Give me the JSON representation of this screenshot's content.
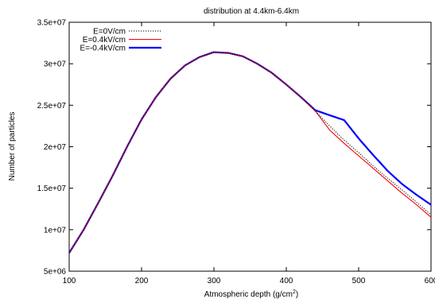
{
  "chart_data": {
    "type": "line",
    "title": "distribution at 4.4km-6.4km",
    "xlabel_main": "Atmospheric depth (g/cm",
    "xlabel_sup": "2",
    "xlabel_close": ")",
    "ylabel": "Number of particles",
    "xlim": [
      100,
      600
    ],
    "ylim": [
      5000000,
      35000000
    ],
    "xticks": [
      100,
      200,
      300,
      400,
      500,
      600
    ],
    "yticks": [
      5000000,
      10000000,
      15000000,
      20000000,
      25000000,
      30000000,
      35000000
    ],
    "ytick_labels": [
      "5e+06",
      "1e+07",
      "1.5e+07",
      "2e+07",
      "2.5e+07",
      "3e+07",
      "3.5e+07"
    ],
    "grid": false,
    "legend_position": "top-left",
    "series": [
      {
        "name": "E=0V/cm",
        "color": "#000000",
        "style": "dotted",
        "x": [
          100,
          120,
          140,
          160,
          180,
          200,
          220,
          240,
          260,
          280,
          300,
          320,
          340,
          360,
          380,
          400,
          420,
          440,
          460,
          480,
          500,
          520,
          540,
          560,
          580,
          600
        ],
        "y": [
          7200000,
          10000000,
          13200000,
          16500000,
          20000000,
          23300000,
          26000000,
          28200000,
          29800000,
          30800000,
          31400000,
          31300000,
          30900000,
          30000000,
          28900000,
          27500000,
          26000000,
          24300000,
          22500000,
          20800000,
          19300000,
          17700000,
          16200000,
          14800000,
          13300000,
          11800000
        ]
      },
      {
        "name": "E=0.4kV/cm",
        "color": "#ff0000",
        "style": "solid",
        "x": [
          100,
          120,
          140,
          160,
          180,
          200,
          220,
          240,
          260,
          280,
          300,
          320,
          340,
          360,
          380,
          400,
          420,
          440,
          460,
          480,
          500,
          520,
          540,
          560,
          580,
          600
        ],
        "y": [
          7200000,
          10000000,
          13200000,
          16500000,
          20000000,
          23300000,
          26000000,
          28200000,
          29800000,
          30800000,
          31400000,
          31300000,
          30900000,
          30000000,
          28900000,
          27500000,
          26000000,
          24300000,
          22000000,
          20400000,
          18900000,
          17400000,
          15900000,
          14400000,
          13000000,
          11500000
        ]
      },
      {
        "name": "E=-0.4kV/cm",
        "color": "#0000ff",
        "style": "thick",
        "x": [
          100,
          120,
          140,
          160,
          180,
          200,
          220,
          240,
          260,
          280,
          300,
          320,
          340,
          360,
          380,
          400,
          420,
          440,
          460,
          480,
          500,
          520,
          540,
          560,
          580,
          600
        ],
        "y": [
          7200000,
          10000000,
          13200000,
          16500000,
          20000000,
          23300000,
          26000000,
          28200000,
          29800000,
          30800000,
          31400000,
          31300000,
          30900000,
          30000000,
          28900000,
          27500000,
          26000000,
          24400000,
          23800000,
          23200000,
          21000000,
          19000000,
          17100000,
          15500000,
          14200000,
          13000000
        ]
      }
    ]
  }
}
